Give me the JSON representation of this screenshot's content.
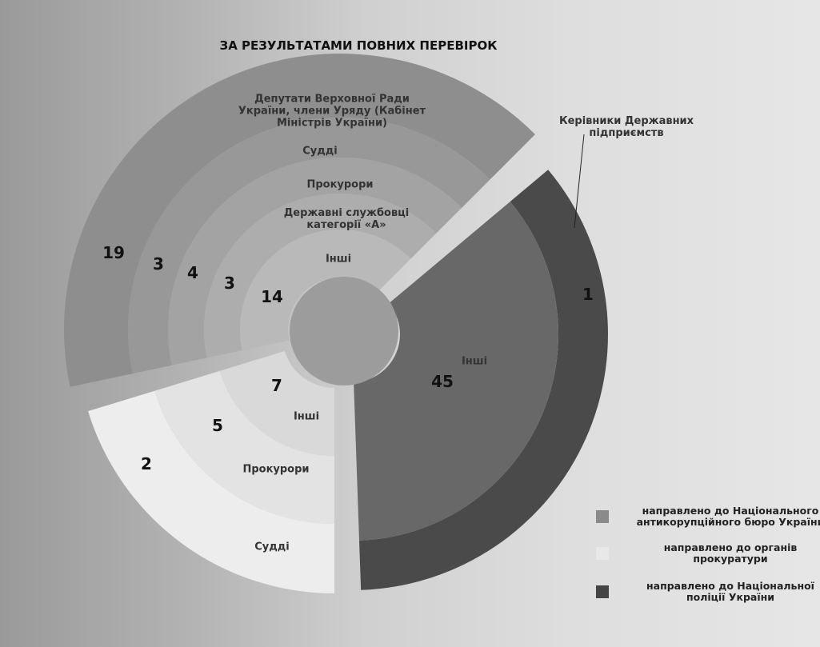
{
  "chart_data": {
    "type": "nested-rings",
    "title": "ЗА РЕЗУЛЬТАТАМИ ПОВНИХ ПЕРЕВІРОК",
    "series": [
      {
        "name": "направлено до Національного антикорупційного бюро України",
        "color": "#8a8a8a",
        "segments": [
          {
            "label": "Депутати Верховної Ради України, члени Уряду (Кабінет Міністрів України)",
            "value": 19,
            "color": "#8e8e8e"
          },
          {
            "label": "Судді",
            "value": 3,
            "color": "#989898"
          },
          {
            "label": "Прокурори",
            "value": 4,
            "color": "#a3a3a3"
          },
          {
            "label": "Державні службовці категорії «А»",
            "value": 3,
            "color": "#adadad"
          },
          {
            "label": "Інші",
            "value": 14,
            "color": "#b9b9b9"
          }
        ]
      },
      {
        "name": "направлено до органів прокуратури",
        "color": "#e8e8e8",
        "segments": [
          {
            "label": "Судді",
            "value": 2,
            "color": "#ededed"
          },
          {
            "label": "Прокурори",
            "value": 5,
            "color": "#e3e3e3"
          },
          {
            "label": "Інші",
            "value": 7,
            "color": "#d9d9d9"
          }
        ]
      },
      {
        "name": "направлено до Національної поліції України",
        "color": "#444444",
        "segments": [
          {
            "label": "Керівники Державних підприємств",
            "value": 1,
            "color": "#4a4a4a"
          },
          {
            "label": "Інші",
            "value": 45,
            "color": "#686868"
          }
        ]
      }
    ]
  }
}
